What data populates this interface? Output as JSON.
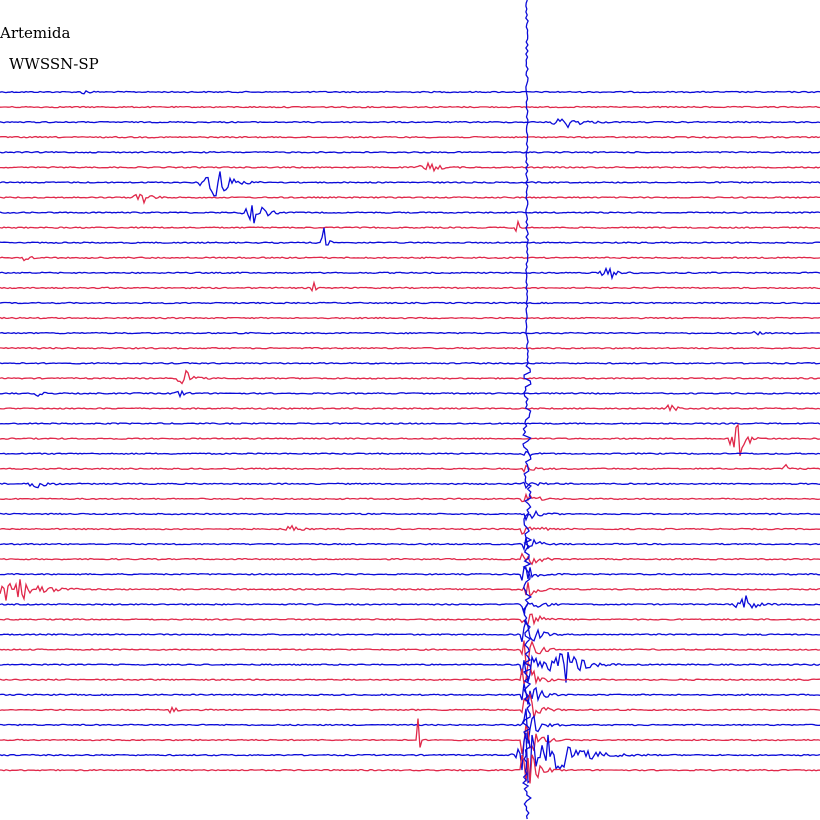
{
  "header": {
    "station": "Artemida",
    "instrument": "WWSSN-SP"
  }
}
